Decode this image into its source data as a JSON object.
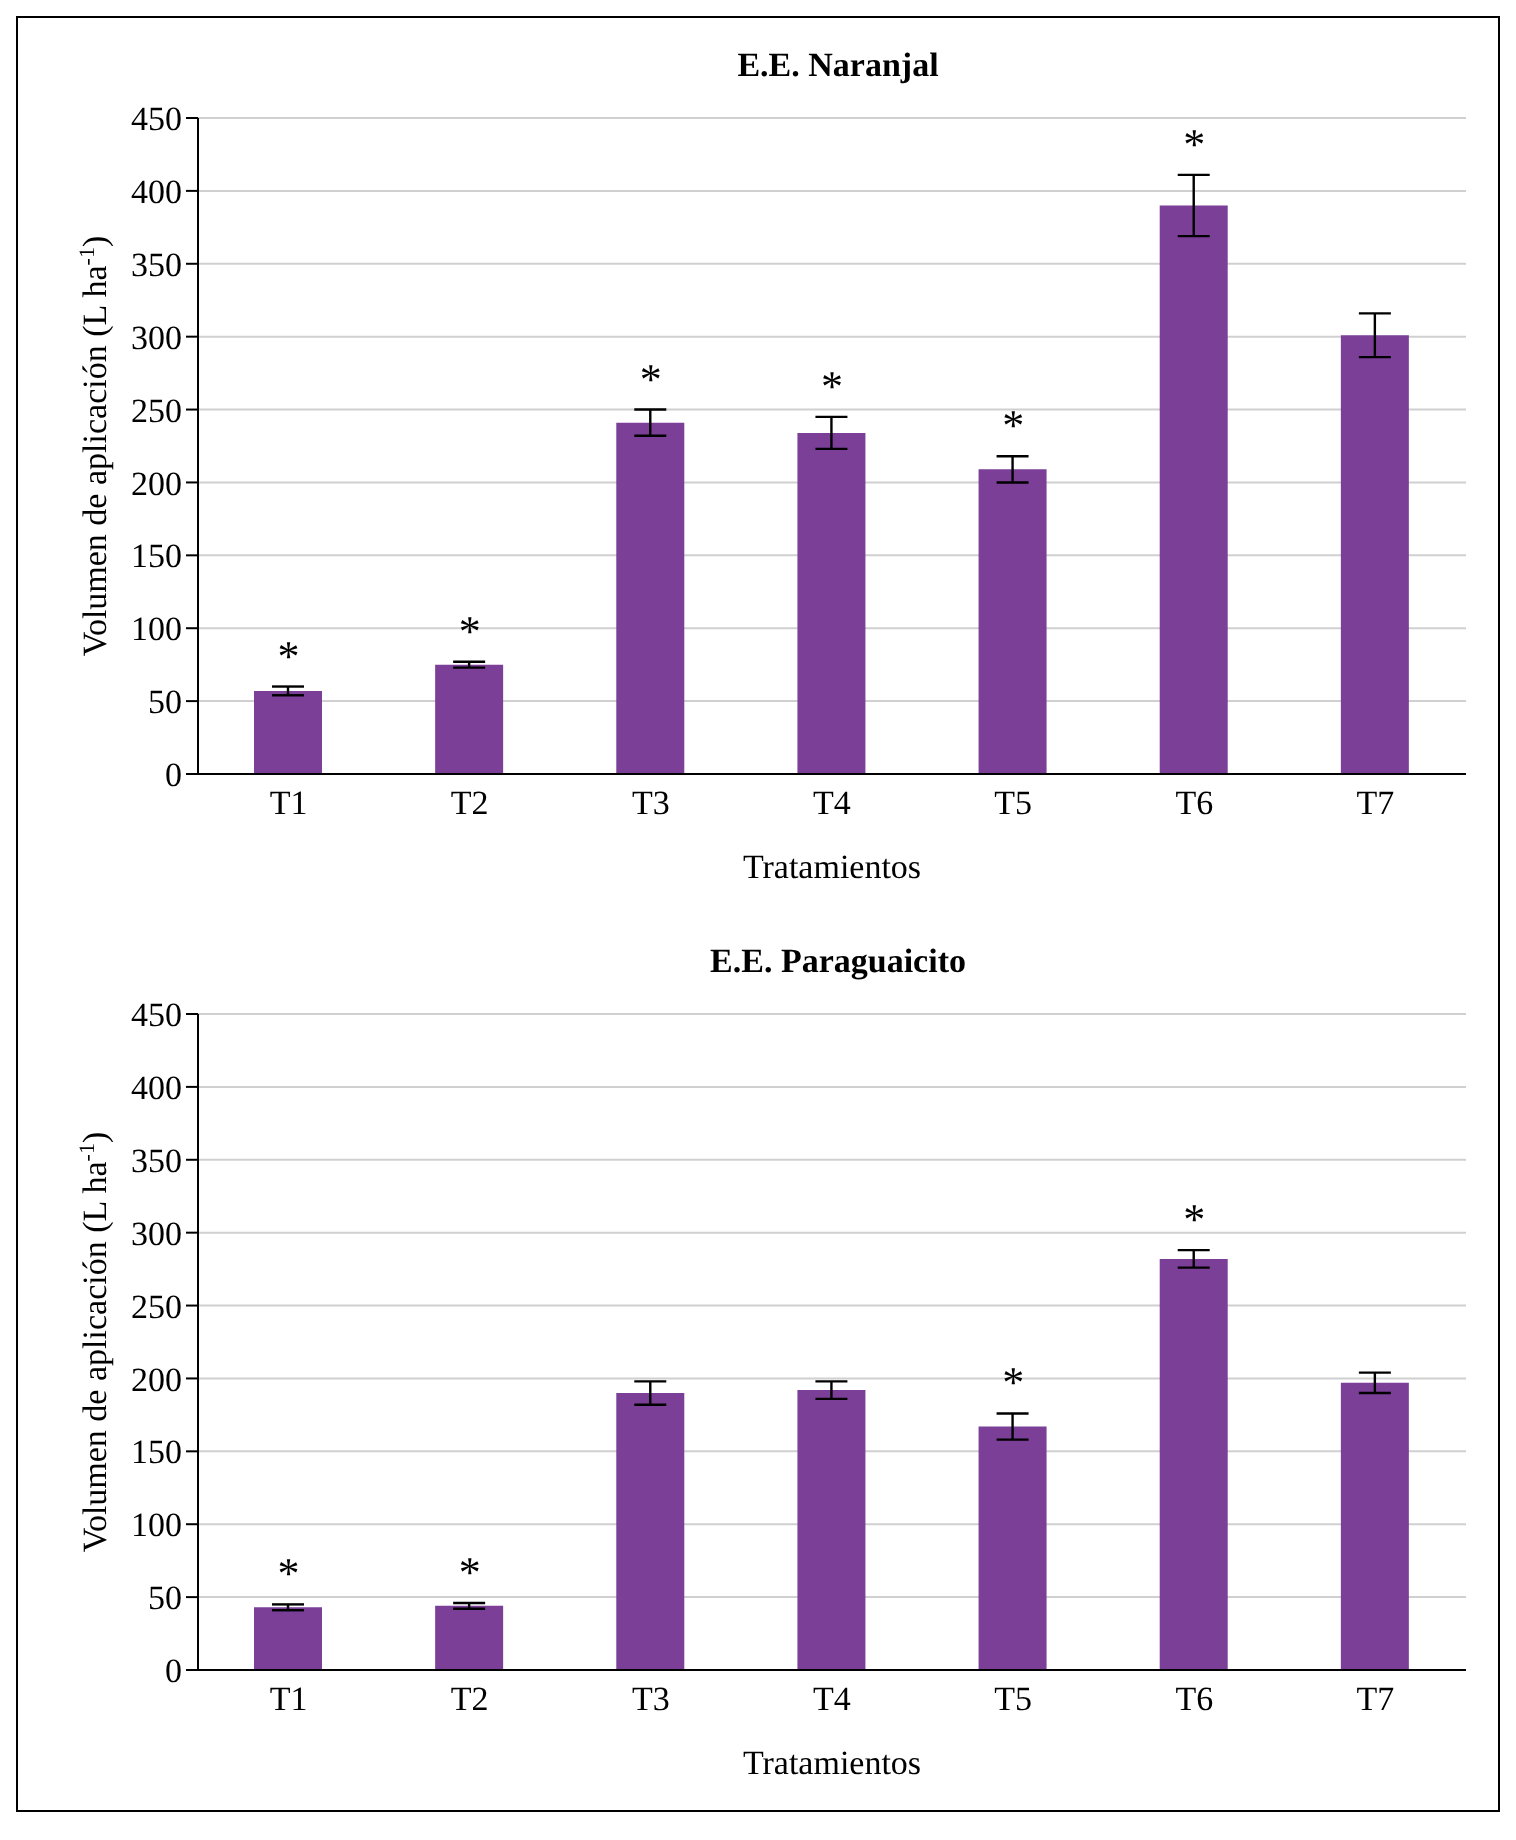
{
  "chart_data": [
    {
      "type": "bar",
      "title": "E.E. Naranjal",
      "xlabel": "Tratamientos",
      "ylabel": "Volumen de aplicación (L ha$^{-1}$)",
      "categories": [
        "T1",
        "T2",
        "T3",
        "T4",
        "T5",
        "T6",
        "T7"
      ],
      "values": [
        57,
        75,
        241,
        234,
        209,
        390,
        301
      ],
      "errors": [
        3,
        2,
        9,
        11,
        9,
        21,
        15
      ],
      "color": "#7b3f98",
      "ylim": [
        0,
        450
      ],
      "yticks": [
        0,
        50,
        100,
        150,
        200,
        250,
        300,
        350,
        400,
        450
      ],
      "grid": "y",
      "annotations": [
        {
          "text": "*",
          "x": "T1",
          "y": 57
        },
        {
          "text": "*",
          "x": "T2",
          "y": 75
        },
        {
          "text": "*",
          "x": "T3",
          "y": 241
        },
        {
          "text": "*",
          "x": "T4",
          "y": 234
        },
        {
          "text": "*",
          "x": "T5",
          "y": 209
        },
        {
          "text": "*",
          "x": "T6",
          "y": 390
        }
      ]
    },
    {
      "type": "bar",
      "title": "E.E. Paraguaicito",
      "xlabel": "Tratamientos",
      "ylabel": "Volumen de aplicación (L ha$^{-1}$)",
      "categories": [
        "T1",
        "T2",
        "T3",
        "T4",
        "T5",
        "T6",
        "T7"
      ],
      "values": [
        43,
        44,
        190,
        192,
        167,
        282,
        197
      ],
      "errors": [
        2,
        2,
        8,
        6,
        9,
        6,
        7
      ],
      "color": "#7b3f98",
      "ylim": [
        0,
        450
      ],
      "yticks": [
        0,
        50,
        100,
        150,
        200,
        250,
        300,
        350,
        400,
        450
      ],
      "grid": "y",
      "annotations": [
        {
          "text": "*",
          "x": "T1",
          "y": 43
        },
        {
          "text": "*",
          "x": "T2",
          "y": 44
        },
        {
          "text": "*",
          "x": "T5",
          "y": 167
        },
        {
          "text": "*",
          "x": "T6",
          "y": 282
        }
      ]
    }
  ]
}
